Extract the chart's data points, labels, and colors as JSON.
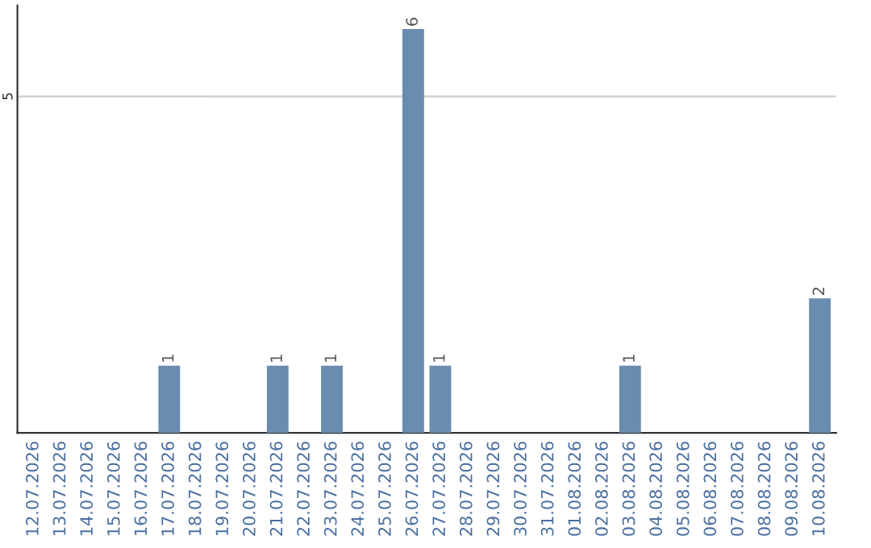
{
  "chart_data": {
    "type": "bar",
    "categories": [
      "12.07.2026",
      "13.07.2026",
      "14.07.2026",
      "15.07.2026",
      "16.07.2026",
      "17.07.2026",
      "18.07.2026",
      "19.07.2026",
      "20.07.2026",
      "21.07.2026",
      "22.07.2026",
      "23.07.2026",
      "24.07.2026",
      "25.07.2026",
      "26.07.2026",
      "27.07.2026",
      "28.07.2026",
      "29.07.2026",
      "30.07.2026",
      "31.07.2026",
      "01.08.2026",
      "02.08.2026",
      "03.08.2026",
      "04.08.2026",
      "05.08.2026",
      "06.08.2026",
      "07.08.2026",
      "08.08.2026",
      "09.08.2026",
      "10.08.2026"
    ],
    "values": [
      0,
      0,
      0,
      0,
      0,
      1,
      0,
      0,
      0,
      1,
      0,
      1,
      0,
      0,
      6,
      1,
      0,
      0,
      0,
      0,
      0,
      0,
      1,
      0,
      0,
      0,
      0,
      0,
      0,
      2
    ],
    "value_labels": [
      null,
      null,
      null,
      null,
      null,
      "1",
      null,
      null,
      null,
      "1",
      null,
      "1",
      null,
      null,
      "6",
      "1",
      null,
      null,
      null,
      null,
      null,
      null,
      "1",
      null,
      null,
      null,
      null,
      null,
      null,
      "2"
    ],
    "color": "#6a8caf",
    "ylim": [
      0,
      6.35
    ],
    "yticks": [
      5
    ],
    "grid": "y"
  }
}
